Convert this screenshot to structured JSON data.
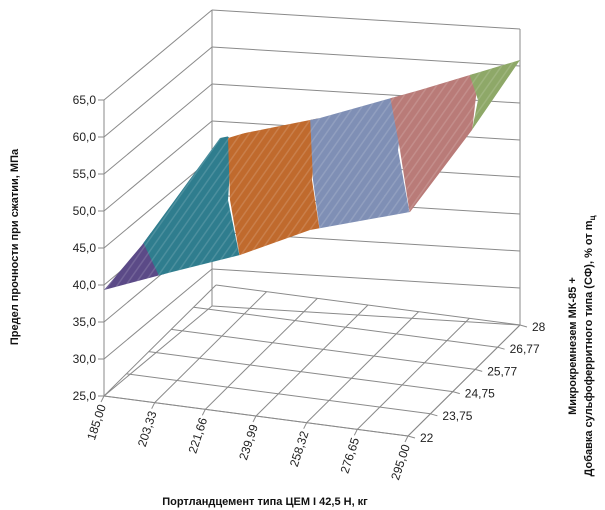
{
  "chart_data": {
    "type": "surface",
    "xlabel": "Портландцемент типа ЦЕМ I 42,5 Н, кг",
    "ylabel": "Микрокремнезем МК-85 + Добавка сульфоферритного типа (СФ), % от m",
    "ylabel_line1": "Микрокремнезем МК-85 +",
    "ylabel_line2_prefix": "Добавка сульфоферритного типа (СФ), % от m",
    "ylabel_subscript": "ц",
    "zlabel": "Предел прочности при сжатии, МПа",
    "x_ticks": [
      "185,00",
      "203,33",
      "221,66",
      "239,99",
      "258,32",
      "276,65",
      "295,00"
    ],
    "y_ticks": [
      "22",
      "23,75",
      "24,75",
      "25,77",
      "26,77",
      "28"
    ],
    "z_ticks": [
      "25,0",
      "30,0",
      "35,0",
      "40,0",
      "45,0",
      "50,0",
      "55,0",
      "60,0",
      "65,0"
    ],
    "zlim": [
      25,
      65
    ],
    "bands": [
      {
        "range": "35,0-40,0",
        "color": "#5b4a87"
      },
      {
        "range": "40,0-45,0",
        "color": "#2f7d8e"
      },
      {
        "range": "45,0-50,0",
        "color": "#c06a2d"
      },
      {
        "range": "50,0-55,0",
        "color": "#7f8fb5"
      },
      {
        "range": "55,0-60,0",
        "color": "#b97b78"
      },
      {
        "range": "60,0-65,0",
        "color": "#8ea868"
      }
    ]
  }
}
